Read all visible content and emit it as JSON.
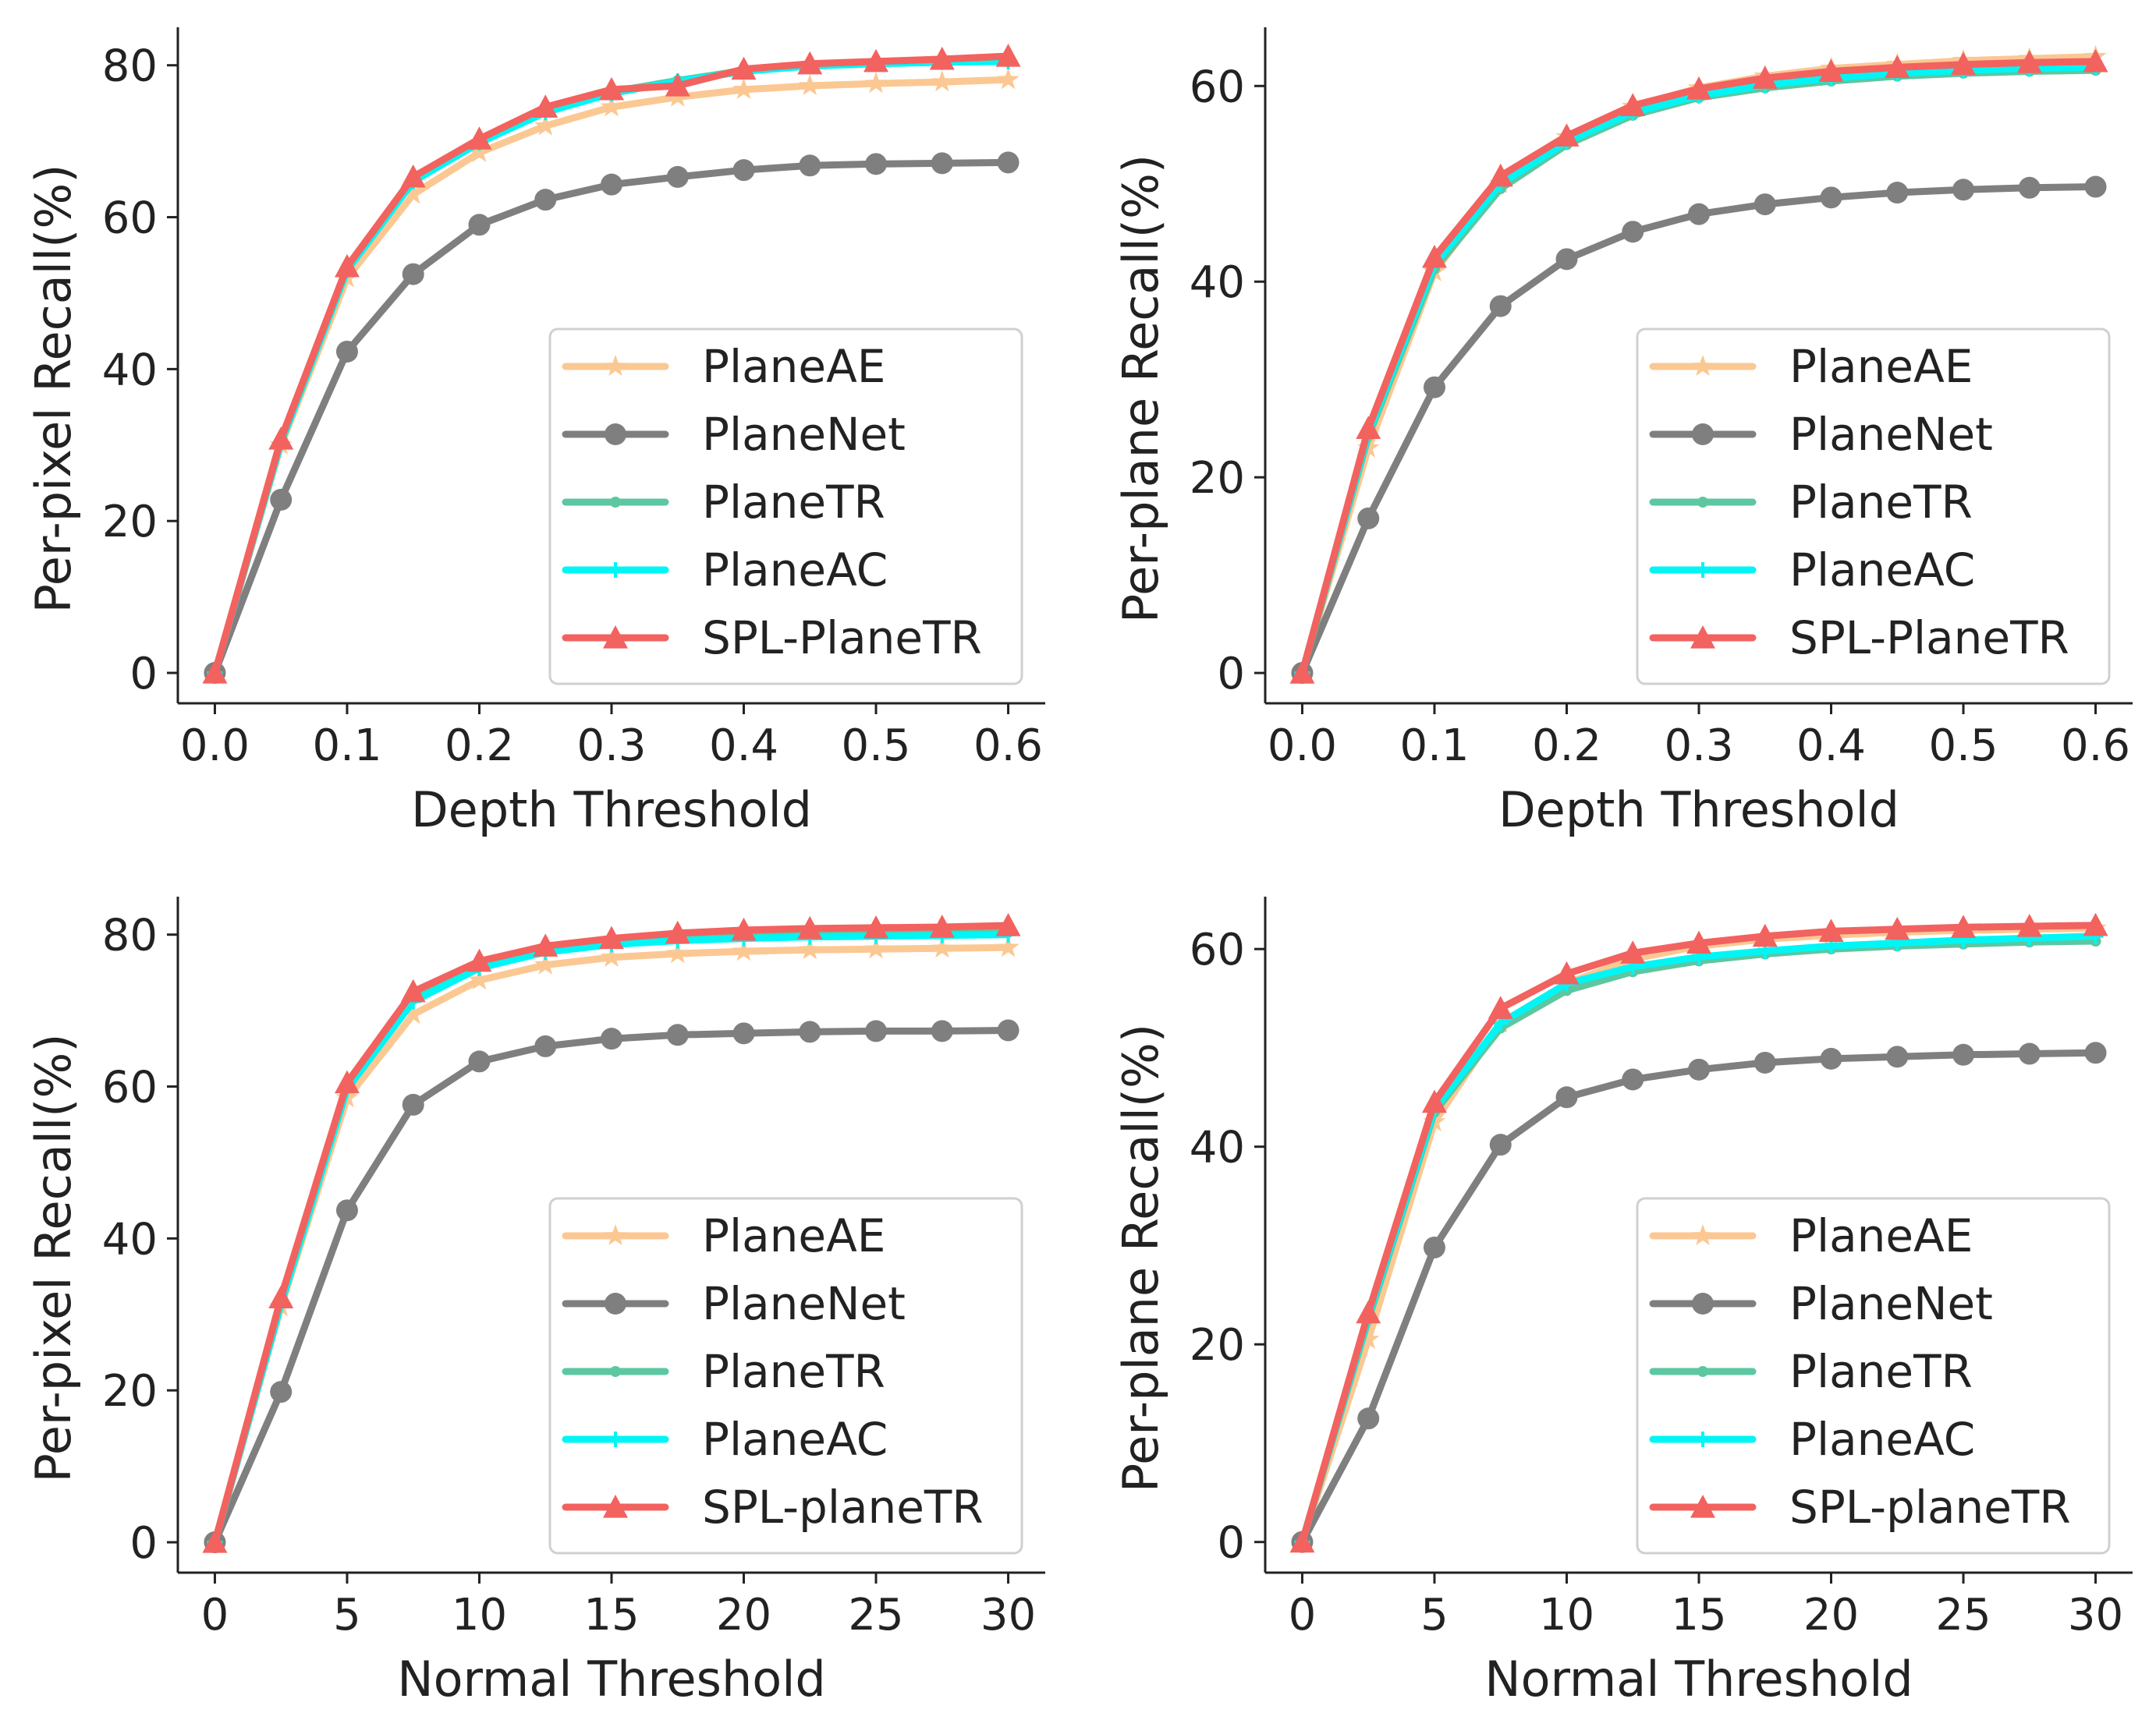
{
  "chart_data": [
    {
      "type": "line",
      "xlabel": "Depth Threshold",
      "ylabel": "Per-pixel Recall(%)",
      "xlim": [
        -0.028,
        0.628
      ],
      "ylim": [
        -4,
        85
      ],
      "xticks": [
        0,
        0.1,
        0.2,
        0.3,
        0.4,
        0.5,
        0.6
      ],
      "xtick_labels": [
        "0.0",
        "0.1",
        "0.2",
        "0.3",
        "0.4",
        "0.5",
        "0.6"
      ],
      "yticks": [
        0,
        20,
        40,
        60,
        80
      ],
      "ytick_labels": [
        "0",
        "20",
        "40",
        "60",
        "80"
      ],
      "legend_position": "lower-right",
      "x": [
        0,
        0.05,
        0.1,
        0.15,
        0.2,
        0.25,
        0.3,
        0.35,
        0.4,
        0.45,
        0.5,
        0.55,
        0.6
      ],
      "series": [
        {
          "name": "PlaneAE",
          "color": "#fbc893",
          "marker": "star",
          "values": [
            0,
            30,
            52,
            63,
            68.5,
            72,
            74.5,
            75.8,
            76.8,
            77.3,
            77.6,
            77.8,
            78.1
          ]
        },
        {
          "name": "PlaneNet",
          "color": "#7f7f7f",
          "marker": "circle",
          "values": [
            0,
            22.8,
            42.3,
            52.5,
            59,
            62.3,
            64.3,
            65.3,
            66.2,
            66.8,
            67,
            67.1,
            67.2
          ]
        },
        {
          "name": "PlaneTR",
          "color": "#5cc7a0",
          "marker": "dot",
          "values": [
            0,
            30.5,
            53.2,
            65,
            70,
            74,
            76.5,
            78,
            79.3,
            80,
            80.3,
            80.5,
            80.6
          ]
        },
        {
          "name": "PlaneAC",
          "color": "#00f5f5",
          "marker": "plus",
          "values": [
            0,
            30.3,
            53,
            64.7,
            69.8,
            73.8,
            76.3,
            77.9,
            79.2,
            79.9,
            80.2,
            80.4,
            80.5
          ]
        },
        {
          "name": "SPL-PlaneTR",
          "color": "#f2625f",
          "marker": "triangle",
          "values": [
            0,
            30.8,
            53.5,
            65.3,
            70.3,
            74.5,
            76.8,
            77.3,
            79.5,
            80.2,
            80.5,
            80.8,
            81.2
          ]
        }
      ]
    },
    {
      "type": "line",
      "xlabel": "Depth Threshold",
      "ylabel": "Per-plane Recall(%)",
      "xlim": [
        -0.028,
        0.628
      ],
      "ylim": [
        -3.1,
        66
      ],
      "xticks": [
        0,
        0.1,
        0.2,
        0.3,
        0.4,
        0.5,
        0.6
      ],
      "xtick_labels": [
        "0.0",
        "0.1",
        "0.2",
        "0.3",
        "0.4",
        "0.5",
        "0.6"
      ],
      "yticks": [
        0,
        20,
        40,
        60
      ],
      "ytick_labels": [
        "0",
        "20",
        "40",
        "60"
      ],
      "legend_position": "lower-right",
      "x": [
        0,
        0.05,
        0.1,
        0.15,
        0.2,
        0.25,
        0.3,
        0.35,
        0.4,
        0.45,
        0.5,
        0.55,
        0.6
      ],
      "series": [
        {
          "name": "PlaneAE",
          "color": "#fbc893",
          "marker": "star",
          "values": [
            0,
            23,
            41,
            50,
            54.8,
            57.9,
            59.8,
            61,
            61.8,
            62.2,
            62.6,
            62.8,
            63
          ]
        },
        {
          "name": "PlaneNet",
          "color": "#7f7f7f",
          "marker": "circle",
          "values": [
            0,
            15.8,
            29.2,
            37.5,
            42.3,
            45.1,
            46.9,
            47.9,
            48.6,
            49.1,
            49.4,
            49.6,
            49.7
          ]
        },
        {
          "name": "PlaneTR",
          "color": "#5cc7a0",
          "marker": "dot",
          "values": [
            0,
            24.2,
            41.3,
            49.5,
            54,
            57,
            58.8,
            59.8,
            60.5,
            61,
            61.3,
            61.5,
            61.6
          ]
        },
        {
          "name": "PlaneAC",
          "color": "#00f5f5",
          "marker": "plus",
          "values": [
            0,
            24.5,
            41.8,
            50,
            54.3,
            57.3,
            59,
            60.1,
            60.8,
            61.3,
            61.6,
            61.8,
            61.9
          ]
        },
        {
          "name": "SPL-PlaneTR",
          "color": "#f2625f",
          "marker": "triangle",
          "values": [
            0,
            25,
            42.5,
            50.8,
            54.9,
            58,
            59.7,
            60.8,
            61.5,
            61.9,
            62.2,
            62.4,
            62.5
          ]
        }
      ]
    },
    {
      "type": "line",
      "xlabel": "Normal Threshold",
      "ylabel": "Per-pixel Recall(%)",
      "xlim": [
        -1.4,
        31.4
      ],
      "ylim": [
        -4,
        85
      ],
      "xticks": [
        0,
        5,
        10,
        15,
        20,
        25,
        30
      ],
      "xtick_labels": [
        "0",
        "5",
        "10",
        "15",
        "20",
        "25",
        "30"
      ],
      "yticks": [
        0,
        20,
        40,
        60,
        80
      ],
      "ytick_labels": [
        "0",
        "20",
        "40",
        "60",
        "80"
      ],
      "legend_position": "lower-right",
      "x": [
        0,
        2.5,
        5,
        7.5,
        10,
        12.5,
        15,
        17.5,
        20,
        22.5,
        25,
        27.5,
        30
      ],
      "series": [
        {
          "name": "PlaneAE",
          "color": "#fbc893",
          "marker": "star",
          "values": [
            0,
            31,
            58.5,
            69.5,
            74,
            76,
            77,
            77.5,
            77.8,
            78,
            78.1,
            78.2,
            78.3
          ]
        },
        {
          "name": "PlaneNet",
          "color": "#7f7f7f",
          "marker": "circle",
          "values": [
            0,
            19.8,
            43.7,
            57.6,
            63.3,
            65.3,
            66.3,
            66.8,
            67,
            67.2,
            67.3,
            67.3,
            67.4
          ]
        },
        {
          "name": "PlaneTR",
          "color": "#5cc7a0",
          "marker": "dot",
          "values": [
            0,
            31.5,
            60,
            71.5,
            76,
            78,
            79,
            79.5,
            79.8,
            80,
            80.1,
            80.2,
            80.3
          ]
        },
        {
          "name": "PlaneAC",
          "color": "#00f5f5",
          "marker": "plus",
          "values": [
            0,
            31.3,
            59.7,
            71.2,
            75.6,
            77.7,
            78.7,
            79.2,
            79.5,
            79.7,
            79.8,
            79.9,
            80
          ]
        },
        {
          "name": "SPL-planeTR",
          "color": "#f2625f",
          "marker": "triangle",
          "values": [
            0,
            32.2,
            60.5,
            72.5,
            76.5,
            78.5,
            79.5,
            80.2,
            80.6,
            80.8,
            80.9,
            81,
            81.2
          ]
        }
      ]
    },
    {
      "type": "line",
      "xlabel": "Normal Threshold",
      "ylabel": "Per-plane Recall(%)",
      "xlim": [
        -1.4,
        31.4
      ],
      "ylim": [
        -3.1,
        65.3
      ],
      "xticks": [
        0,
        5,
        10,
        15,
        20,
        25,
        30
      ],
      "xtick_labels": [
        "0",
        "5",
        "10",
        "15",
        "20",
        "25",
        "30"
      ],
      "yticks": [
        0,
        20,
        40,
        60
      ],
      "ytick_labels": [
        "0",
        "20",
        "40",
        "60"
      ],
      "legend_position": "lower-right",
      "x": [
        0,
        2.5,
        5,
        7.5,
        10,
        12.5,
        15,
        17.5,
        20,
        22.5,
        25,
        27.5,
        30
      ],
      "series": [
        {
          "name": "PlaneAE",
          "color": "#fbc893",
          "marker": "star",
          "values": [
            0,
            20.5,
            42.5,
            52.5,
            56.5,
            59,
            60.3,
            61,
            61.4,
            61.7,
            61.9,
            62,
            62.1
          ]
        },
        {
          "name": "PlaneNet",
          "color": "#7f7f7f",
          "marker": "circle",
          "values": [
            0,
            12.5,
            29.8,
            40.2,
            45,
            46.8,
            47.8,
            48.5,
            48.9,
            49.1,
            49.3,
            49.4,
            49.5
          ]
        },
        {
          "name": "PlaneTR",
          "color": "#5cc7a0",
          "marker": "dot",
          "values": [
            0,
            22.5,
            43.5,
            52,
            55.8,
            57.7,
            58.8,
            59.5,
            60,
            60.3,
            60.5,
            60.7,
            60.8
          ]
        },
        {
          "name": "PlaneAC",
          "color": "#00f5f5",
          "marker": "plus",
          "values": [
            0,
            22.8,
            43.8,
            52.5,
            56.5,
            58.2,
            59.2,
            59.8,
            60.3,
            60.6,
            60.9,
            61.1,
            61.3
          ]
        },
        {
          "name": "SPL-planeTR",
          "color": "#f2625f",
          "marker": "triangle",
          "values": [
            0,
            23.2,
            44.5,
            54,
            57.5,
            59.6,
            60.6,
            61.3,
            61.8,
            62,
            62.2,
            62.3,
            62.4
          ]
        }
      ]
    }
  ]
}
